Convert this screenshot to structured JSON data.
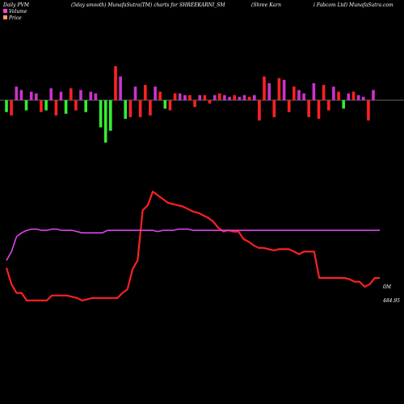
{
  "header": {
    "left": "Daily PVM",
    "middle": "(5day smooth) MunafaSutra(TM) charts for SHREEKARNI_SM",
    "right1": "(Shree  Karn",
    "right2": "i  Fabcom Ltd) MunafaSutra.com"
  },
  "chart_data": {
    "type": "line",
    "legend": [
      {
        "name": "Volume",
        "color": "#ff44cc"
      },
      {
        "name": "Price",
        "color": "#ff9966"
      }
    ],
    "volume_bars": [
      -7,
      -9,
      8,
      6,
      -6,
      5,
      4,
      -7,
      -6,
      7,
      -9,
      5,
      -8,
      7,
      -6,
      6,
      -7,
      5,
      4,
      -16,
      -25,
      -18,
      20,
      14,
      -11,
      -10,
      8,
      -10,
      9,
      -9,
      8,
      5,
      -5,
      -6,
      4,
      4,
      3,
      3,
      -4,
      3,
      3,
      -2,
      3,
      4,
      3,
      2,
      3,
      2,
      3,
      2,
      3,
      -12,
      14,
      10,
      -10,
      13,
      12,
      -7,
      8,
      6,
      4,
      -10,
      10,
      -11,
      9,
      -6,
      8,
      5,
      -5,
      4,
      5,
      3,
      2,
      -12,
      6
    ],
    "price": [
      0.28,
      0.15,
      0.08,
      0.08,
      0.02,
      0.02,
      0.02,
      0.02,
      0.02,
      0.06,
      0.06,
      0.06,
      0.06,
      0.05,
      0.04,
      0.02,
      0.03,
      0.04,
      0.04,
      0.04,
      0.04,
      0.04,
      0.04,
      0.08,
      0.11,
      0.27,
      0.34,
      0.74,
      0.78,
      0.89,
      0.86,
      0.83,
      0.8,
      0.79,
      0.78,
      0.77,
      0.75,
      0.73,
      0.72,
      0.7,
      0.68,
      0.65,
      0.6,
      0.57,
      0.58,
      0.57,
      0.57,
      0.51,
      0.49,
      0.46,
      0.44,
      0.44,
      0.43,
      0.42,
      0.43,
      0.43,
      0.43,
      0.41,
      0.39,
      0.41,
      0.41,
      0.41,
      0.2,
      0.2,
      0.2,
      0.2,
      0.2,
      0.2,
      0.19,
      0.17,
      0.17,
      0.13,
      0.15,
      0.2,
      0.2
    ],
    "volume_line": [
      0.34,
      0.41,
      0.53,
      0.56,
      0.58,
      0.59,
      0.59,
      0.58,
      0.58,
      0.59,
      0.59,
      0.58,
      0.58,
      0.58,
      0.57,
      0.56,
      0.56,
      0.56,
      0.56,
      0.56,
      0.58,
      0.58,
      0.58,
      0.58,
      0.58,
      0.58,
      0.58,
      0.58,
      0.58,
      0.58,
      0.57,
      0.58,
      0.58,
      0.58,
      0.59,
      0.59,
      0.59,
      0.58,
      0.58,
      0.58,
      0.58,
      0.58,
      0.58,
      0.58,
      0.58,
      0.58,
      0.58,
      0.58,
      0.58,
      0.58,
      0.58,
      0.58,
      0.58,
      0.58,
      0.58,
      0.58,
      0.58,
      0.58,
      0.58,
      0.58,
      0.58,
      0.58,
      0.58,
      0.58,
      0.58,
      0.58,
      0.58,
      0.58,
      0.58,
      0.58,
      0.58,
      0.58,
      0.58,
      0.58,
      0.58
    ],
    "volume_label": "0M",
    "price_label": "484.95"
  }
}
